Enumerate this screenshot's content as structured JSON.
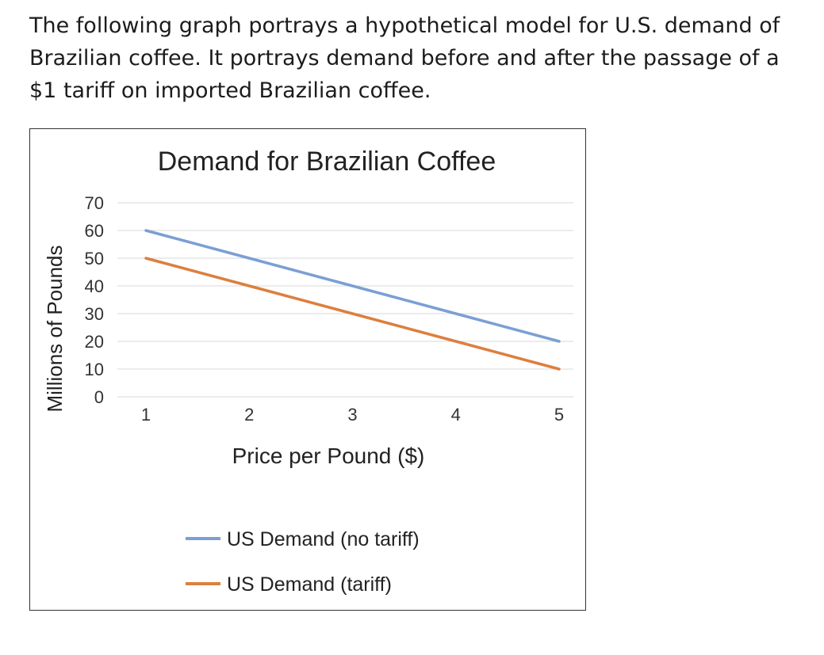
{
  "intro_text": "The following graph portrays a hypothetical model for U.S. demand of Brazilian coffee. It portrays demand before and after the passage of a $1 tariff on imported Brazilian coffee.",
  "chart_data": {
    "type": "line",
    "title": "Demand for Brazilian Coffee",
    "xlabel": "Price per Pound ($)",
    "ylabel": "Millions of Pounds",
    "x": [
      1,
      2,
      3,
      4,
      5
    ],
    "xlim": [
      1,
      5
    ],
    "ylim": [
      0,
      70
    ],
    "yticks": [
      0,
      10,
      20,
      30,
      40,
      50,
      60,
      70
    ],
    "xticks": [
      1,
      2,
      3,
      4,
      5
    ],
    "grid": true,
    "legend_position": "bottom",
    "series": [
      {
        "name": "US Demand (no tariff)",
        "values": [
          60,
          50,
          40,
          30,
          20
        ],
        "color": "#7B9FD4"
      },
      {
        "name": "US Demand (tariff)",
        "values": [
          50,
          40,
          30,
          20,
          10
        ],
        "color": "#DC7F3E"
      }
    ]
  }
}
